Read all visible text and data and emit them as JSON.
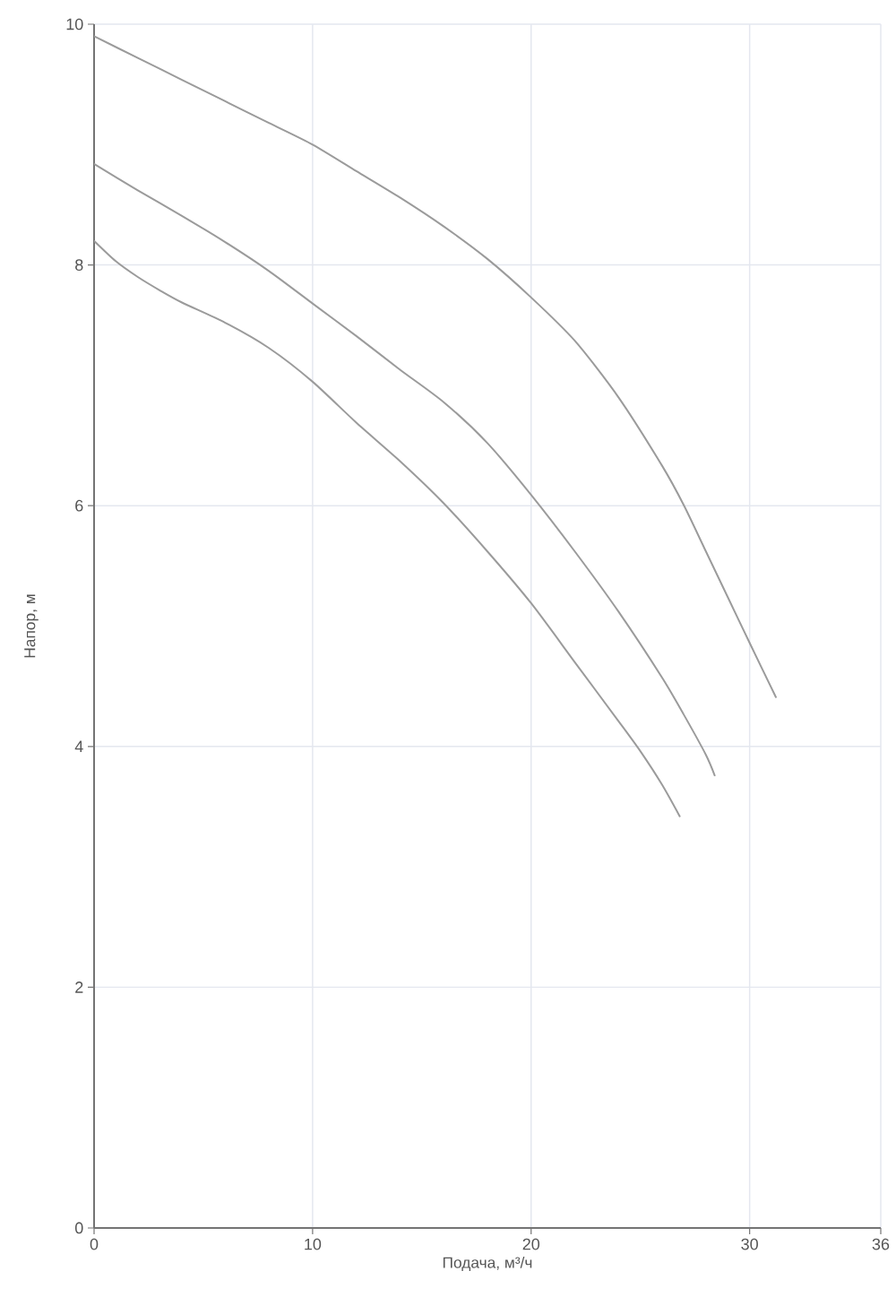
{
  "chart_data": {
    "type": "line",
    "xlabel": "Подача, м³/ч",
    "ylabel": "Напор, м",
    "xlim": [
      0,
      36
    ],
    "ylim": [
      0,
      10
    ],
    "xticks": [
      0,
      10,
      20,
      30,
      36
    ],
    "yticks": [
      0,
      2,
      4,
      6,
      8,
      10
    ],
    "grid": true,
    "series": [
      {
        "color": "#9b9b9b",
        "x": [
          0,
          2,
          4,
          6,
          8,
          10,
          12,
          14,
          16,
          18,
          20,
          22,
          24,
          26,
          27,
          28,
          29,
          30,
          31.2
        ],
        "values": [
          9.9,
          9.72,
          9.54,
          9.36,
          9.18,
          9.0,
          8.78,
          8.56,
          8.32,
          8.05,
          7.73,
          7.37,
          6.9,
          6.33,
          6.0,
          5.62,
          5.24,
          4.86,
          4.41
        ]
      },
      {
        "color": "#9b9b9b",
        "x": [
          0,
          2,
          4,
          6,
          8,
          10,
          12,
          14,
          16,
          18,
          20,
          22,
          24,
          26,
          27,
          28,
          28.4
        ],
        "values": [
          8.84,
          8.62,
          8.41,
          8.19,
          7.95,
          7.68,
          7.41,
          7.13,
          6.86,
          6.52,
          6.09,
          5.62,
          5.12,
          4.57,
          4.26,
          3.93,
          3.76
        ]
      },
      {
        "color": "#9b9b9b",
        "x": [
          0,
          1,
          2,
          3,
          4,
          6,
          8,
          10,
          12,
          14,
          16,
          18,
          20,
          22,
          24,
          25,
          26,
          26.8
        ],
        "values": [
          8.2,
          8.03,
          7.9,
          7.79,
          7.69,
          7.52,
          7.31,
          7.03,
          6.69,
          6.37,
          6.02,
          5.62,
          5.19,
          4.7,
          4.21,
          3.96,
          3.68,
          3.42
        ]
      }
    ]
  }
}
